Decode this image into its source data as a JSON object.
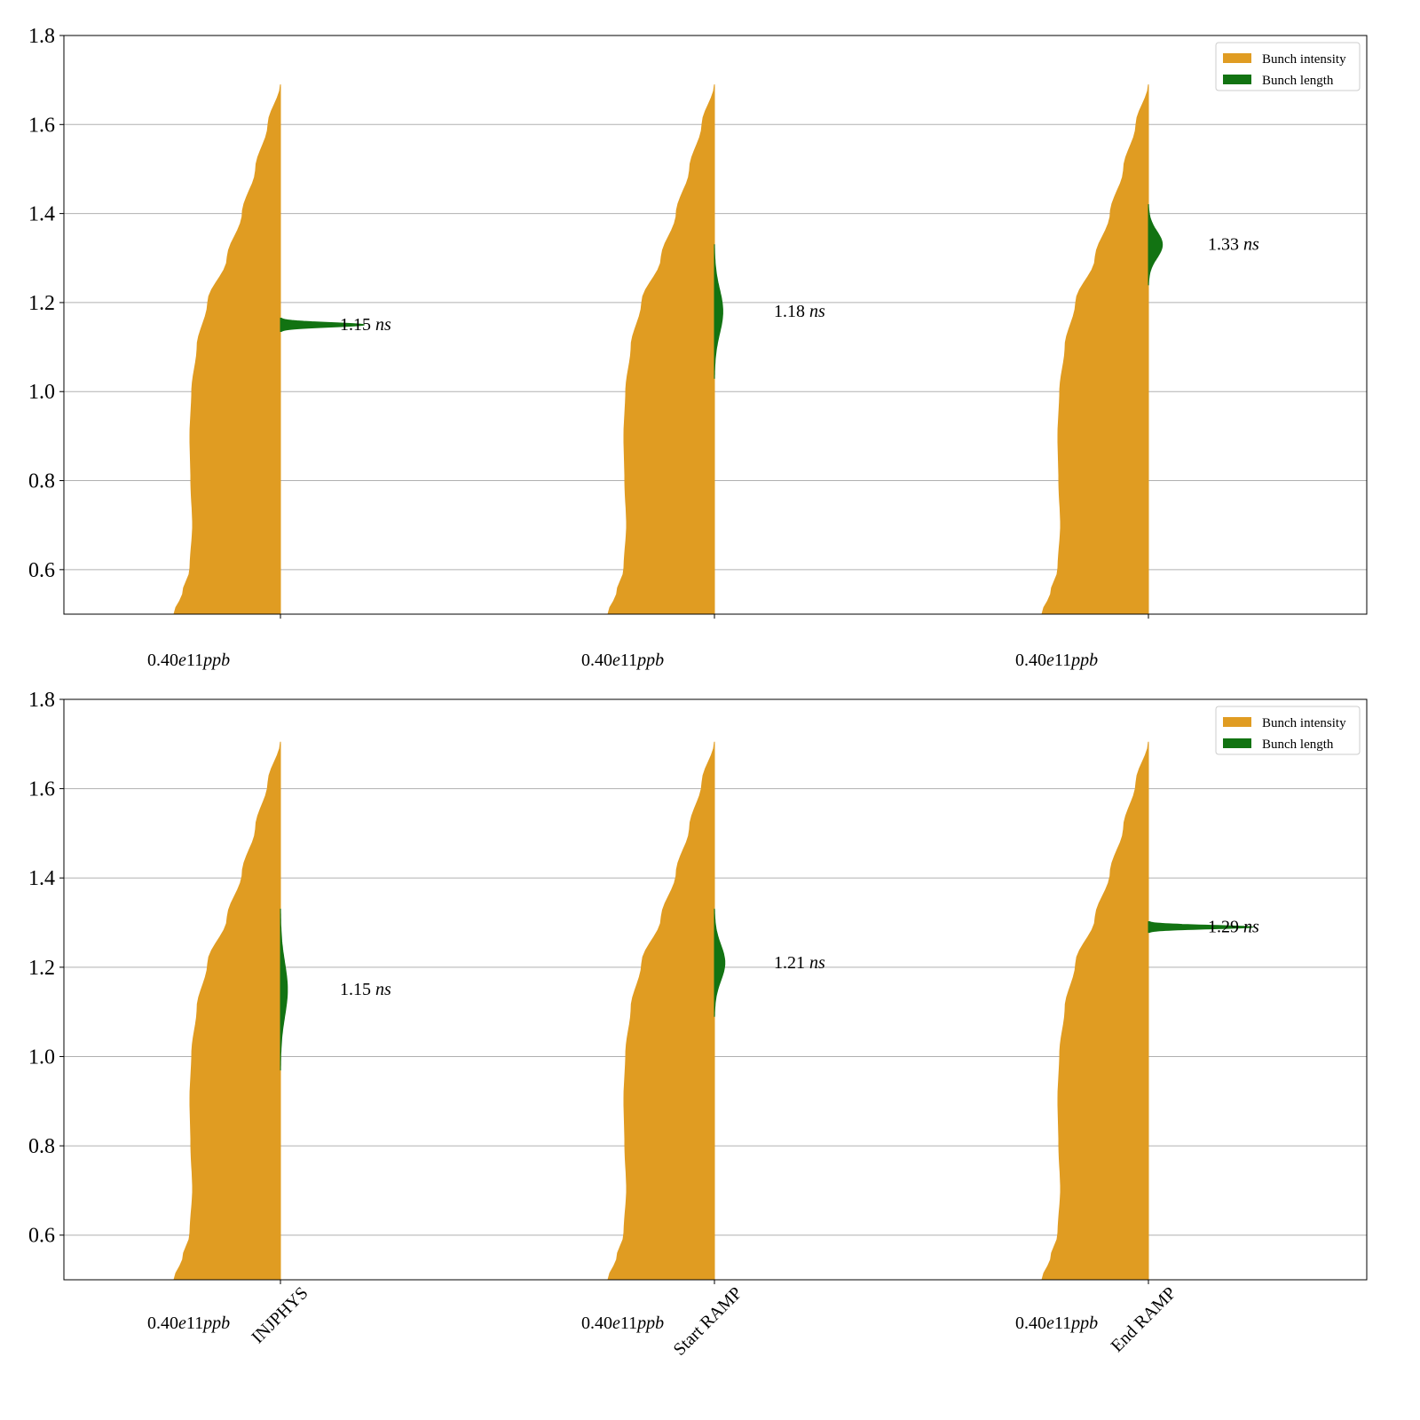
{
  "colors": {
    "intensity": "#e09c22",
    "length": "#127312",
    "grid": "#b0b0b0"
  },
  "chart_data": [
    {
      "type": "violin",
      "ylim": [
        0.5,
        1.8
      ],
      "yticks": [
        0.6,
        0.8,
        1.0,
        1.2,
        1.4,
        1.6,
        1.8
      ],
      "ytick_labels": [
        "0.6",
        "0.8",
        "1.0",
        "1.2",
        "1.4",
        "1.6",
        "1.8"
      ],
      "grid": true,
      "legend": {
        "placement": "top-right",
        "entries": [
          {
            "label": "Bunch intensity",
            "color": "#e09c22"
          },
          {
            "label": "Bunch length",
            "color": "#127312"
          }
        ]
      },
      "categories": [
        "INJPHYS",
        "Start RAMP",
        "End RAMP"
      ],
      "show_category_labels": false,
      "intensity_labels": [
        "0.40e11ppb",
        "0.40e11ppb",
        "0.40e11ppb"
      ],
      "intensity_label_parts": [
        [
          "0.40",
          "e",
          "11",
          "ppb"
        ],
        [
          "0.40",
          "e",
          "11",
          "ppb"
        ],
        [
          "0.40",
          "e",
          "11",
          "ppb"
        ]
      ],
      "length_labels": [
        "1.15 ns",
        "1.18 ns",
        "1.33 ns"
      ],
      "length_label_parts": [
        [
          "1.15 ",
          "ns"
        ],
        [
          "1.18 ",
          "ns"
        ],
        [
          "1.33 ",
          "ns"
        ]
      ],
      "bunch_length_ns": [
        1.15,
        1.18,
        1.33
      ],
      "bunch_length_spread_ns": [
        0.005,
        0.05,
        0.03
      ],
      "intensity_range": [
        0.5,
        1.69
      ]
    },
    {
      "type": "violin",
      "ylim": [
        0.5,
        1.8
      ],
      "yticks": [
        0.6,
        0.8,
        1.0,
        1.2,
        1.4,
        1.6,
        1.8
      ],
      "ytick_labels": [
        "0.6",
        "0.8",
        "1.0",
        "1.2",
        "1.4",
        "1.6",
        "1.8"
      ],
      "grid": true,
      "legend": {
        "placement": "top-right",
        "entries": [
          {
            "label": "Bunch intensity",
            "color": "#e09c22"
          },
          {
            "label": "Bunch length",
            "color": "#127312"
          }
        ]
      },
      "categories": [
        "INJPHYS",
        "Start RAMP",
        "End RAMP"
      ],
      "show_category_labels": true,
      "intensity_labels": [
        "0.40e11ppb",
        "0.40e11ppb",
        "0.40e11ppb"
      ],
      "intensity_label_parts": [
        [
          "0.40",
          "e",
          "11",
          "ppb"
        ],
        [
          "0.40",
          "e",
          "11",
          "ppb"
        ],
        [
          "0.40",
          "e",
          "11",
          "ppb"
        ]
      ],
      "length_labels": [
        "1.15 ns",
        "1.21 ns",
        "1.29 ns"
      ],
      "length_label_parts": [
        [
          "1.15 ",
          "ns"
        ],
        [
          "1.21 ",
          "ns"
        ],
        [
          "1.29 ",
          "ns"
        ]
      ],
      "bunch_length_ns": [
        1.15,
        1.21,
        1.29
      ],
      "bunch_length_spread_ns": [
        0.06,
        0.04,
        0.004
      ],
      "intensity_range": [
        0.5,
        1.705
      ]
    }
  ]
}
